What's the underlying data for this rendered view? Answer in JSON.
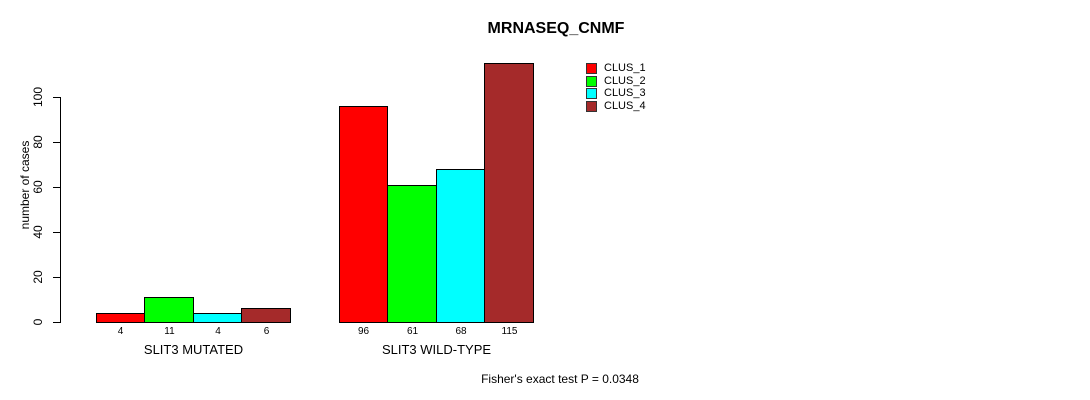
{
  "title": "MRNASEQ_CNMF",
  "ylabel": "number of cases",
  "annotation": "Fisher's exact test P = 0.0348",
  "legend": {
    "items": [
      {
        "label": "CLUS_1",
        "color": "#FF0000"
      },
      {
        "label": "CLUS_2",
        "color": "#00FF00"
      },
      {
        "label": "CLUS_3",
        "color": "#00FFFF"
      },
      {
        "label": "CLUS_4",
        "color": "#A52A2A"
      }
    ]
  },
  "chart_data": {
    "type": "bar",
    "title": "MRNASEQ_CNMF",
    "ylabel": "number of cases",
    "xlabel": "",
    "series": [
      "CLUS_1",
      "CLUS_2",
      "CLUS_3",
      "CLUS_4"
    ],
    "colors": [
      "#FF0000",
      "#00FF00",
      "#00FFFF",
      "#A52A2A"
    ],
    "groups": [
      {
        "label": "SLIT3 MUTATED",
        "values": [
          4,
          11,
          4,
          6
        ]
      },
      {
        "label": "SLIT3 WILD-TYPE",
        "values": [
          96,
          61,
          68,
          115
        ]
      }
    ],
    "bar_value_labels": [
      [
        "4",
        "11",
        "4",
        "6"
      ],
      [
        "96",
        "61",
        "68",
        "115"
      ]
    ],
    "yticks": [
      0,
      20,
      40,
      60,
      80,
      100
    ],
    "ylim": [
      0,
      115
    ],
    "grid": false,
    "legend_position": "top-right",
    "annotation": "Fisher's exact test P = 0.0348",
    "bar_border_color": "#000000",
    "background_color": "#FFFFFF"
  }
}
